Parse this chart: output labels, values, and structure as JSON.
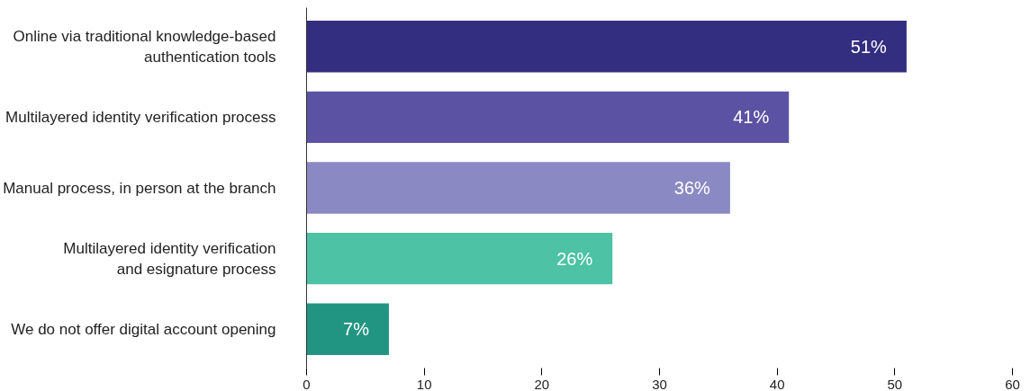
{
  "chart_data": {
    "type": "bar",
    "orientation": "horizontal",
    "categories": [
      "Online via traditional knowledge-based\nauthentication tools",
      "Multilayered identity verification process",
      "Manual process, in person at the branch",
      "Multilayered identity verification\nand esignature process",
      "We do not offer digital account opening"
    ],
    "values": [
      51,
      41,
      36,
      26,
      7
    ],
    "colors": [
      "#332e80",
      "#5b52a3",
      "#8b89c3",
      "#4dc2a4",
      "#229582"
    ],
    "value_labels": [
      "51%",
      "41%",
      "36%",
      "26%",
      "7%"
    ],
    "xlim": [
      0,
      60
    ],
    "xticks": [
      0,
      10,
      20,
      30,
      40,
      50,
      60
    ],
    "grid": false
  }
}
